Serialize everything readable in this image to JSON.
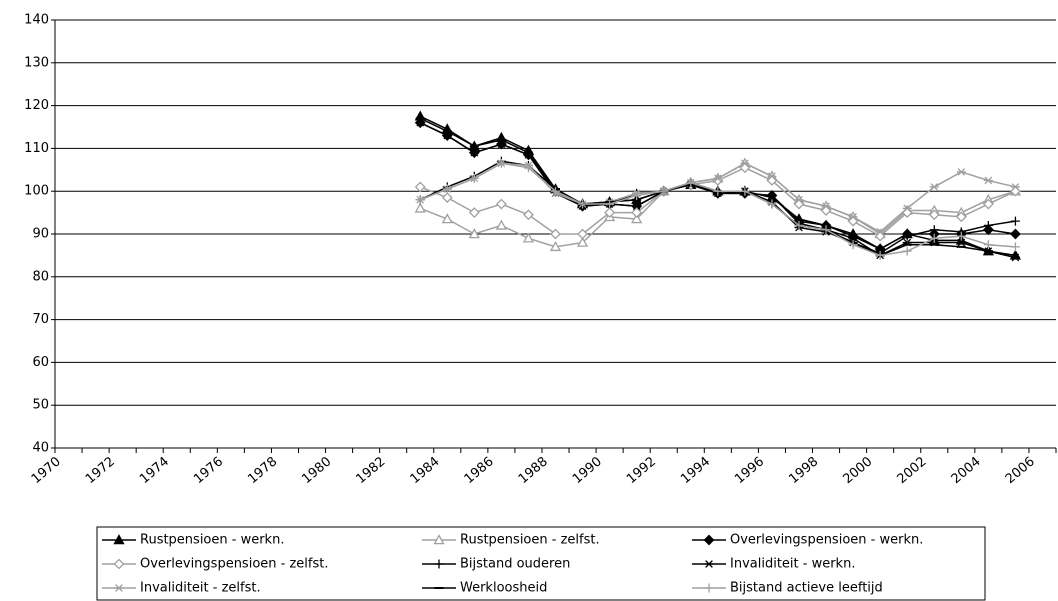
{
  "chart_data": {
    "type": "line",
    "categories": [
      "1970",
      null,
      "1972",
      null,
      "1974",
      null,
      "1976",
      null,
      "1978",
      null,
      "1980",
      null,
      "1982",
      null,
      "1984",
      null,
      "1986",
      null,
      "1988",
      null,
      "1990",
      null,
      "1992",
      null,
      "1994",
      null,
      "1996",
      null,
      "1998",
      null,
      "2000",
      null,
      "2002",
      null,
      "2004",
      null,
      "2006"
    ],
    "ylim": [
      40,
      140
    ],
    "yticks": [
      40,
      50,
      60,
      70,
      80,
      90,
      100,
      110,
      120,
      130,
      140
    ],
    "grid": true,
    "series": [
      {
        "name": "Rustpensioen - werkn.",
        "color": "#000000",
        "marker": "triangle",
        "values": [
          null,
          null,
          null,
          null,
          null,
          null,
          null,
          null,
          null,
          null,
          null,
          null,
          null,
          117.5,
          114.5,
          110.5,
          112.5,
          109.5,
          100.5,
          97,
          97.5,
          98,
          100,
          101.5,
          100,
          100,
          98.5,
          93.5,
          92,
          90,
          86.5,
          90,
          88.5,
          88.5,
          86,
          85,
          null
        ]
      },
      {
        "name": "Rustpensioen - zelfst.",
        "color": "#a0a0a0",
        "marker": "triangle-open",
        "values": [
          null,
          null,
          null,
          null,
          null,
          null,
          null,
          null,
          null,
          null,
          null,
          null,
          null,
          96,
          93.5,
          90,
          92,
          89,
          87,
          88,
          94,
          93.5,
          100,
          102,
          103,
          106.5,
          103.5,
          98,
          96.5,
          94,
          90,
          95.5,
          95.5,
          95,
          98,
          100,
          null
        ]
      },
      {
        "name": "Overlevingspensioen - werkn.",
        "color": "#000000",
        "marker": "diamond",
        "values": [
          null,
          null,
          null,
          null,
          null,
          null,
          null,
          null,
          null,
          null,
          null,
          null,
          null,
          116,
          113,
          109,
          111,
          108.5,
          100,
          96.5,
          97,
          96.5,
          100,
          101.5,
          99.5,
          99.5,
          99,
          93,
          92,
          89.5,
          86.5,
          90,
          90,
          90,
          91,
          90,
          null
        ]
      },
      {
        "name": "Overlevingspensioen - zelfst.",
        "color": "#a0a0a0",
        "marker": "diamond-open",
        "values": [
          null,
          null,
          null,
          null,
          null,
          null,
          null,
          null,
          null,
          null,
          null,
          null,
          null,
          101,
          98.5,
          95,
          97,
          94.5,
          90,
          90,
          95,
          95,
          100,
          101.5,
          102.5,
          105.5,
          102.5,
          97,
          95.5,
          93,
          89.5,
          95,
          94.5,
          94,
          97,
          100,
          null
        ]
      },
      {
        "name": "Bijstand ouderen",
        "color": "#000000",
        "marker": "plus",
        "values": [
          null,
          null,
          null,
          null,
          null,
          null,
          null,
          null,
          null,
          null,
          null,
          null,
          null,
          98,
          101,
          103.5,
          107,
          106,
          100.5,
          97,
          97,
          99.5,
          100,
          102,
          100,
          100,
          97,
          92,
          91,
          88,
          85.5,
          89.5,
          91,
          90.5,
          92,
          93,
          null
        ]
      },
      {
        "name": "Invaliditeit - werkn.",
        "color": "#000000",
        "marker": "asterisk",
        "values": [
          null,
          null,
          null,
          null,
          null,
          null,
          null,
          null,
          null,
          null,
          null,
          null,
          null,
          116,
          113,
          109,
          111,
          108.5,
          99.5,
          96.5,
          97,
          96.5,
          100,
          101.5,
          99.5,
          100,
          97.5,
          91.5,
          90.5,
          88,
          85,
          88,
          88,
          88,
          86,
          84.5,
          null
        ]
      },
      {
        "name": "Invaliditeit - zelfst.",
        "color": "#a0a0a0",
        "marker": "asterisk",
        "values": [
          null,
          null,
          null,
          null,
          null,
          null,
          null,
          null,
          null,
          null,
          null,
          null,
          null,
          98,
          100.5,
          103,
          106.5,
          106,
          99.5,
          97,
          97.5,
          99.5,
          100,
          102,
          103,
          106.5,
          103.5,
          98,
          96.5,
          94,
          90.5,
          96,
          101,
          104.5,
          102.5,
          101,
          null
        ]
      },
      {
        "name": "Werkloosheid",
        "color": "#000000",
        "marker": "dash",
        "values": [
          null,
          null,
          null,
          null,
          null,
          null,
          null,
          null,
          null,
          null,
          null,
          null,
          null,
          117,
          114,
          110.5,
          112,
          109,
          100.5,
          97,
          97.5,
          98,
          100,
          101.5,
          99.5,
          99.5,
          99,
          92.5,
          91,
          89,
          85,
          87.5,
          87.5,
          87,
          86,
          84.5,
          null
        ]
      },
      {
        "name": "Bijstand actieve leeftijd",
        "color": "#a0a0a0",
        "marker": "plus",
        "values": [
          null,
          null,
          null,
          null,
          null,
          null,
          null,
          null,
          null,
          null,
          null,
          null,
          null,
          98,
          100.5,
          103,
          106.5,
          105.5,
          100,
          97,
          97,
          99,
          100,
          102,
          100,
          100,
          97,
          92,
          91,
          87.5,
          85,
          86,
          89,
          89.5,
          87.5,
          87,
          null
        ]
      }
    ]
  }
}
